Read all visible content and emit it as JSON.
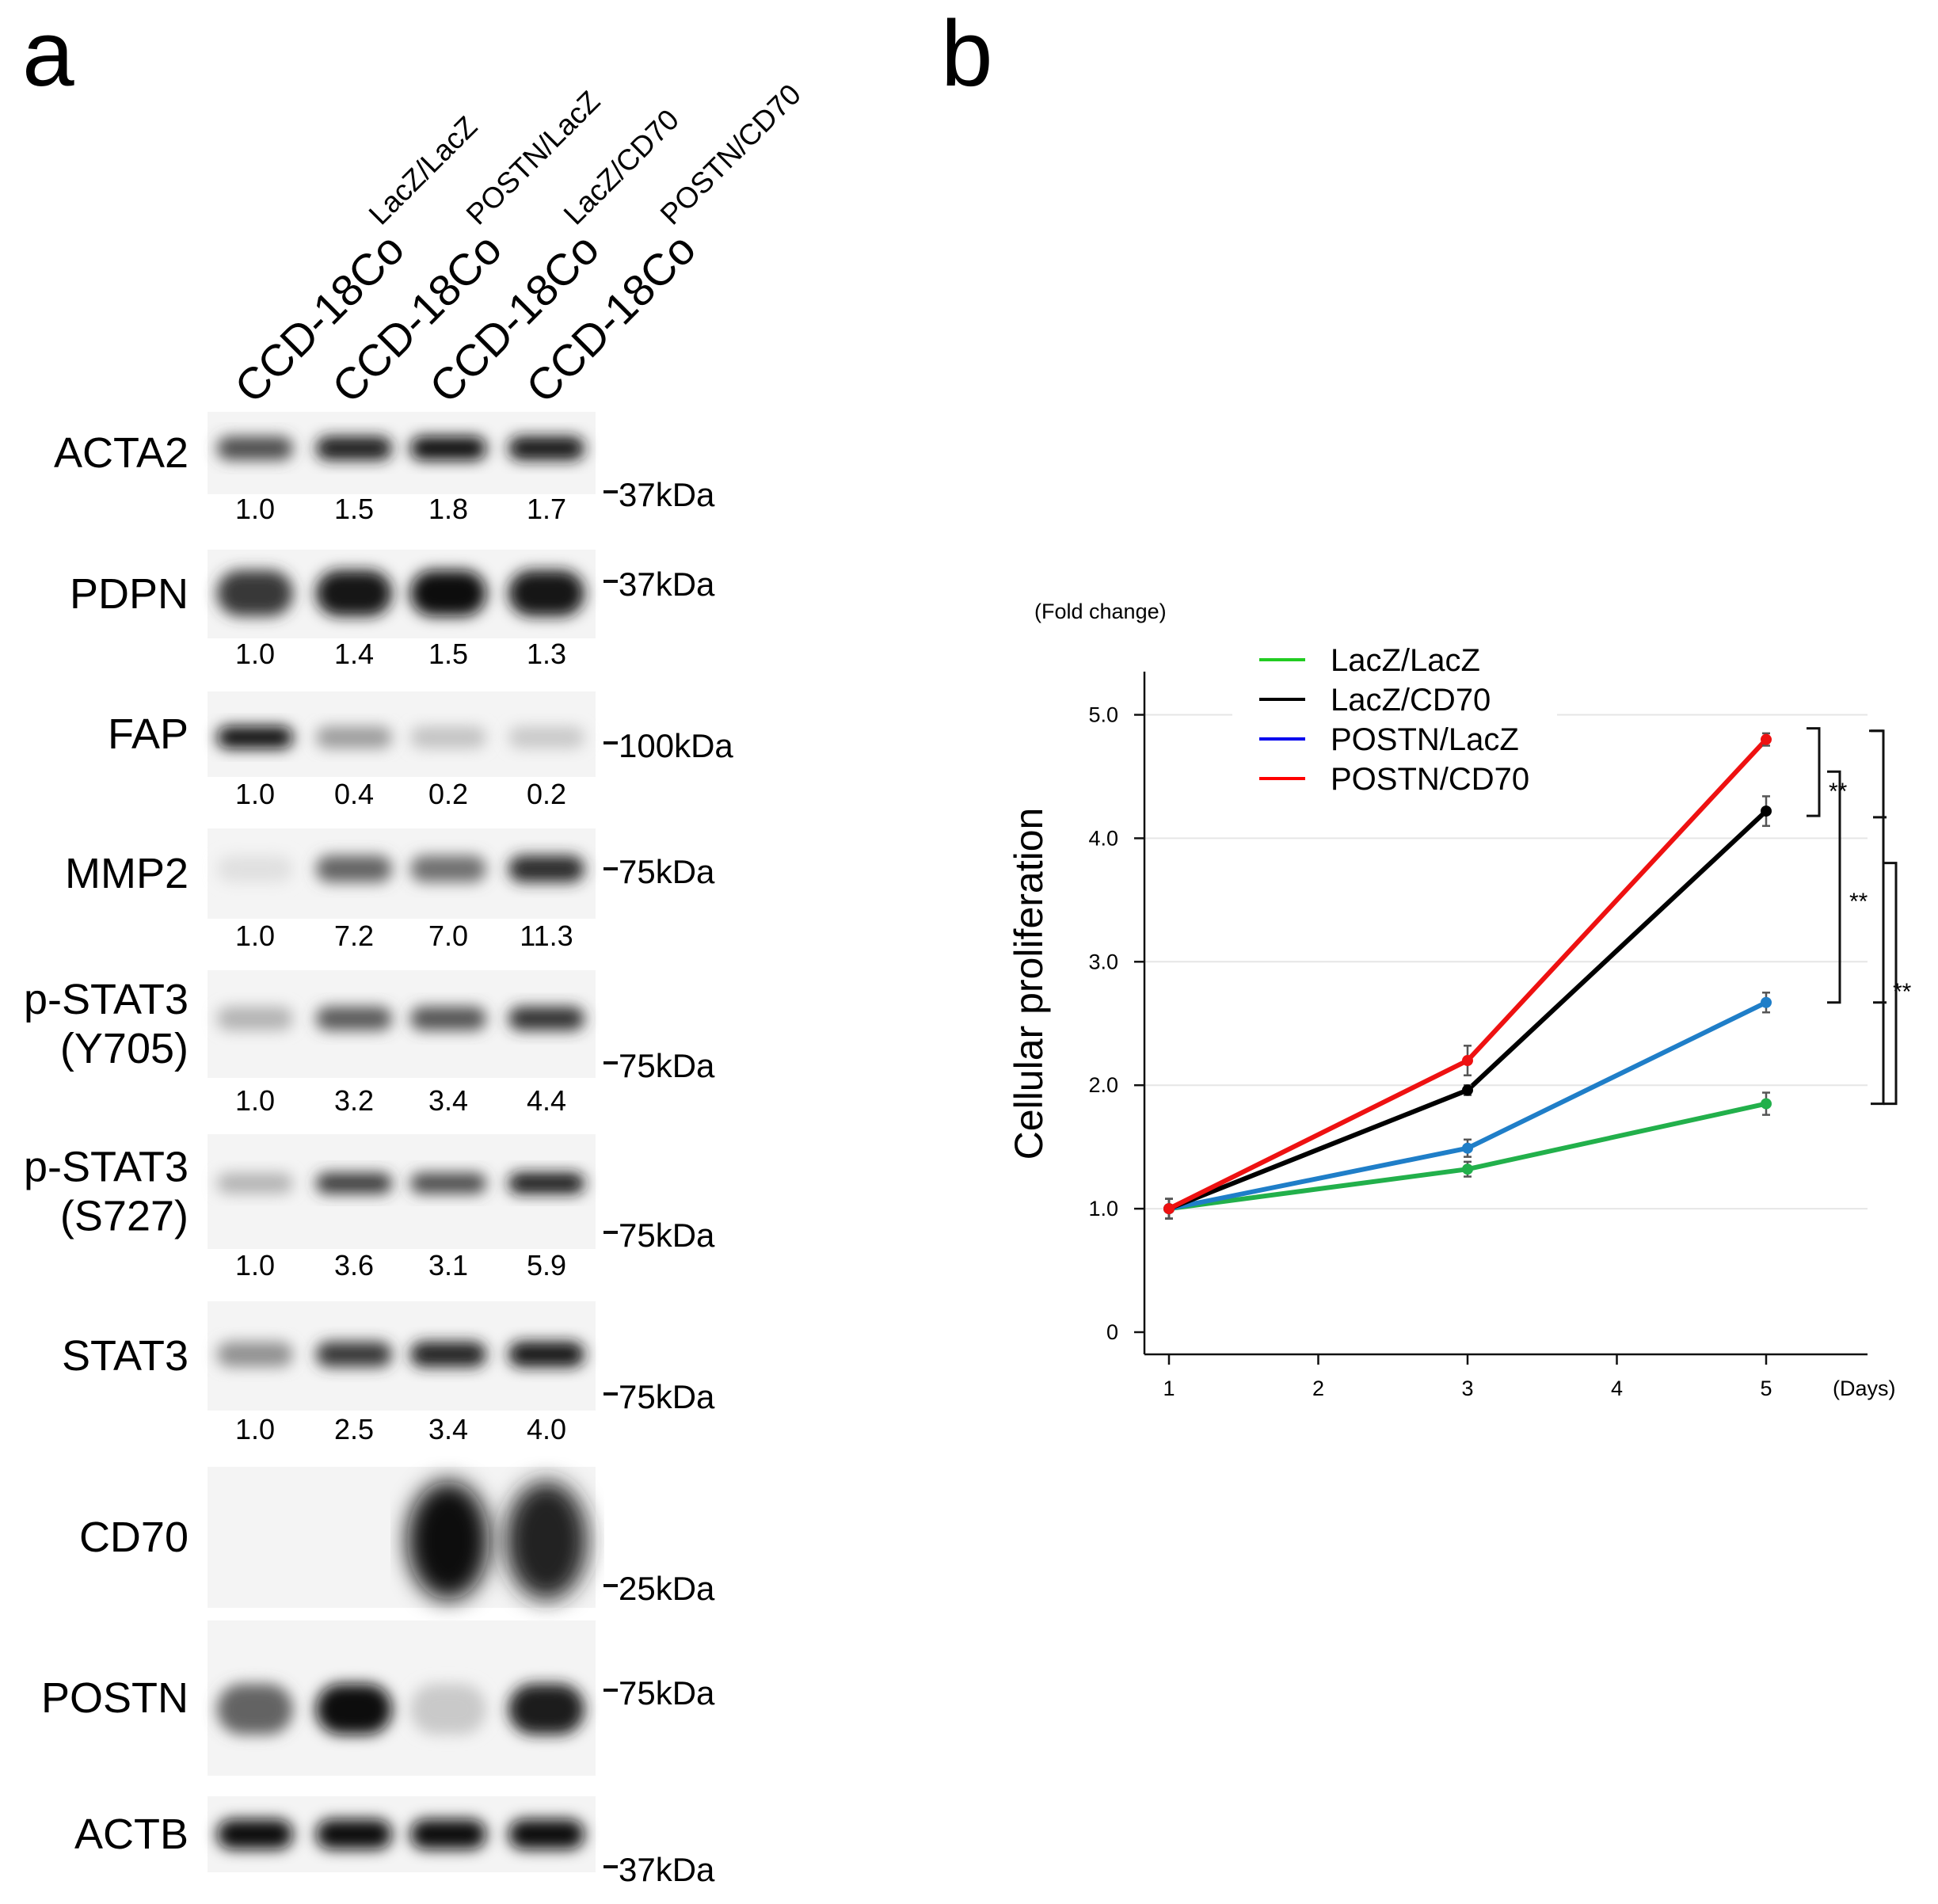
{
  "panel_a": {
    "letter": "a",
    "lanes": [
      {
        "base": "CCD-18Co",
        "sup": "LacZ/LacZ"
      },
      {
        "base": "CCD-18Co",
        "sup": "POSTN/LacZ"
      },
      {
        "base": "CCD-18Co",
        "sup": "LacZ/CD70"
      },
      {
        "base": "CCD-18Co",
        "sup": "POSTN/CD70"
      }
    ],
    "blots": [
      {
        "label": [
          "ACTA2"
        ],
        "marker": "37kDa",
        "quant": [
          "1.0",
          "1.5",
          "1.8",
          "1.7"
        ],
        "intensity": [
          0.7,
          0.92,
          0.97,
          0.95
        ]
      },
      {
        "label": [
          "PDPN"
        ],
        "marker": "37kDa",
        "quant": [
          "1.0",
          "1.4",
          "1.5",
          "1.3"
        ],
        "intensity": [
          0.8,
          0.95,
          0.98,
          0.96
        ]
      },
      {
        "label": [
          "FAP"
        ],
        "marker": "100kDa",
        "quant": [
          "1.0",
          "0.4",
          "0.2",
          "0.2"
        ],
        "intensity": [
          0.97,
          0.35,
          0.18,
          0.15
        ]
      },
      {
        "label": [
          "MMP2"
        ],
        "marker": "75kDa",
        "quant": [
          "1.0",
          "7.2",
          "7.0",
          "11.3"
        ],
        "intensity": [
          0.05,
          0.6,
          0.55,
          0.85
        ]
      },
      {
        "label": [
          "p-STAT3",
          "(Y705)"
        ],
        "marker": "75kDa",
        "quant": [
          "1.0",
          "3.2",
          "3.4",
          "4.4"
        ],
        "intensity": [
          0.25,
          0.65,
          0.68,
          0.82
        ]
      },
      {
        "label": [
          "p-STAT3",
          "(S727)"
        ],
        "marker": "75kDa",
        "quant": [
          "1.0",
          "3.6",
          "3.1",
          "5.9"
        ],
        "intensity": [
          0.25,
          0.8,
          0.72,
          0.95
        ]
      },
      {
        "label": [
          "STAT3"
        ],
        "marker": "75kDa",
        "quant": [
          "1.0",
          "2.5",
          "3.4",
          "4.0"
        ],
        "intensity": [
          0.4,
          0.8,
          0.9,
          0.96
        ]
      },
      {
        "label": [
          "CD70"
        ],
        "marker": "25kDa",
        "quant": [],
        "intensity": [
          0.0,
          0.0,
          1.0,
          0.9
        ]
      },
      {
        "label": [
          "POSTN"
        ],
        "marker": "75kDa",
        "quant": [],
        "intensity": [
          0.6,
          1.0,
          0.15,
          0.92
        ]
      },
      {
        "label": [
          "ACTB"
        ],
        "marker": "37kDa",
        "quant": [],
        "intensity": [
          1.0,
          1.0,
          1.0,
          1.0
        ]
      }
    ]
  },
  "panel_b": {
    "letter": "b",
    "significance": [
      "**",
      "**",
      "**"
    ]
  },
  "chart_data": {
    "type": "line",
    "title": "",
    "xlabel": "(Days)",
    "ylabel": "Cellular proliferation",
    "y_unit_label": "(Fold change)",
    "x_ticks": [
      1,
      2,
      3,
      4,
      5
    ],
    "y_ticks": [
      "0",
      "1.0",
      "2.0",
      "3.0",
      "4.0",
      "5.0"
    ],
    "xlim": [
      1,
      5.7
    ],
    "ylim": [
      0,
      5.5
    ],
    "grid": true,
    "legend_position": "top-left",
    "x": [
      1,
      3,
      5
    ],
    "series": [
      {
        "name": "LacZ/LacZ",
        "legend_color": "#22cc22",
        "line_color": "#22b04b",
        "values": [
          1.0,
          1.32,
          1.85
        ],
        "errors": [
          0.08,
          0.06,
          0.09
        ]
      },
      {
        "name": "LacZ/CD70",
        "legend_color": "#000000",
        "line_color": "#000000",
        "values": [
          1.0,
          1.96,
          4.22
        ],
        "errors": [
          0.08,
          0.04,
          0.12
        ]
      },
      {
        "name": "POSTN/LacZ",
        "legend_color": "#0000ee",
        "line_color": "#1f7ec8",
        "values": [
          1.0,
          1.49,
          2.67
        ],
        "errors": [
          0.08,
          0.07,
          0.08
        ]
      },
      {
        "name": "POSTN/CD70",
        "legend_color": "#ff0000",
        "line_color": "#ee1111",
        "values": [
          1.0,
          2.2,
          4.8
        ],
        "errors": [
          0.08,
          0.12,
          0.05
        ]
      }
    ],
    "comparisons": [
      {
        "from": "POSTN/CD70",
        "to": "LacZ/CD70",
        "label": "**"
      },
      {
        "from": "LacZ/CD70",
        "to": "POSTN/LacZ",
        "label": "**"
      },
      {
        "from": "POSTN/CD70",
        "to": "LacZ/LacZ",
        "label": "**"
      }
    ]
  }
}
